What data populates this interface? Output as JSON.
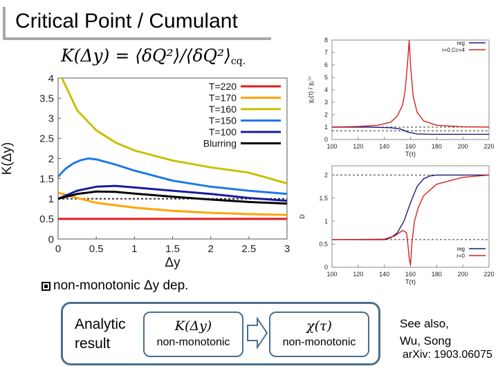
{
  "title": "Critical Point / Cumulant",
  "formula": {
    "lhs": "K(Δy)",
    "rhs_num": "⟨δQ²⟩",
    "rhs_den": "⟨δQ²⟩",
    "sub": "cq."
  },
  "bullet": "non-monotonic Δy dep.",
  "analytic": {
    "line1": "Analytic",
    "line2": "result"
  },
  "box1": {
    "formula": "K(Δy)",
    "label": "non-monotonic"
  },
  "box2": {
    "formula": "χ(τ)",
    "label": "non-monotonic"
  },
  "see_also": {
    "line1": "See also,",
    "line2": "Wu, Song",
    "arxiv": "arXiv: 1903.06075"
  },
  "colors": {
    "T220": "#e41a1c",
    "T170": "#ffa500",
    "T160": "#c8c000",
    "T150": "#1e78e6",
    "T100": "#1a1a9a",
    "Blurring": "#000000",
    "reg": "#1a1a7a",
    "red": "#d42020",
    "accent": "#4a6f8c"
  },
  "chart_data": [
    {
      "type": "line",
      "xlabel": "Δy",
      "ylabel": "K(Δy)",
      "xlim": [
        0,
        3
      ],
      "ylim": [
        0,
        4
      ],
      "xticks": [
        "0",
        "0.5",
        "1",
        "1.5",
        "2",
        "2.5",
        "3"
      ],
      "yticks": [
        "0",
        "0.5",
        "1",
        "1.5",
        "2",
        "2.5",
        "3",
        "3.5",
        "4"
      ],
      "reference_line": 1,
      "legend": "top-right",
      "series": [
        {
          "name": "T=220",
          "x": [
            0,
            3
          ],
          "y": [
            0.5,
            0.5
          ]
        },
        {
          "name": "T=170",
          "x": [
            0,
            0.25,
            0.5,
            1,
            1.5,
            2,
            2.5,
            3
          ],
          "y": [
            1.15,
            1.02,
            0.9,
            0.78,
            0.7,
            0.65,
            0.62,
            0.6
          ]
        },
        {
          "name": "T=160",
          "x": [
            0,
            0.25,
            0.5,
            0.75,
            1,
            1.5,
            2,
            2.5,
            3
          ],
          "y": [
            4.2,
            3.2,
            2.7,
            2.4,
            2.2,
            1.95,
            1.78,
            1.65,
            1.38
          ]
        },
        {
          "name": "T=150",
          "x": [
            0,
            0.1,
            0.2,
            0.3,
            0.4,
            0.5,
            0.75,
            1,
            1.5,
            2,
            2.5,
            3
          ],
          "y": [
            1.55,
            1.75,
            1.88,
            1.96,
            2.0,
            1.98,
            1.85,
            1.7,
            1.45,
            1.3,
            1.2,
            1.12
          ]
        },
        {
          "name": "T=100",
          "x": [
            0,
            0.25,
            0.5,
            0.75,
            1,
            1.5,
            2,
            2.5,
            3
          ],
          "y": [
            1.0,
            1.2,
            1.3,
            1.32,
            1.28,
            1.2,
            1.12,
            1.02,
            0.95
          ]
        },
        {
          "name": "Blurring",
          "x": [
            0,
            0.25,
            0.5,
            0.75,
            1,
            1.5,
            2,
            2.5,
            3
          ],
          "y": [
            1.0,
            1.12,
            1.18,
            1.17,
            1.13,
            1.05,
            0.98,
            0.92,
            0.88
          ]
        }
      ]
    },
    {
      "type": "line",
      "xlabel": "T(τ)",
      "ylabel": "χ₁(τ) / χ₁⁽ⁱ⁾",
      "xlim": [
        100,
        220
      ],
      "ylim": [
        0,
        8
      ],
      "xticks": [
        "100",
        "120",
        "140",
        "160",
        "180",
        "200",
        "220"
      ],
      "yticks": [
        "0",
        "1",
        "2",
        "3",
        "4",
        "5",
        "6",
        "7",
        "8"
      ],
      "reference_lines": [
        1,
        0.7
      ],
      "legend": "top-right",
      "series": [
        {
          "name": "reg",
          "x": [
            100,
            130,
            145,
            152,
            158,
            165,
            175,
            185,
            200,
            220
          ],
          "y": [
            1.0,
            1.0,
            0.95,
            0.85,
            0.6,
            0.45,
            0.42,
            0.42,
            0.42,
            0.42
          ]
        },
        {
          "name": "r=0,Cc=4",
          "x": [
            100,
            120,
            135,
            145,
            150,
            154,
            156,
            158,
            159,
            160,
            162,
            165,
            170,
            180,
            200,
            220
          ],
          "y": [
            1.0,
            1.05,
            1.15,
            1.4,
            1.9,
            2.8,
            4.0,
            6.5,
            8.0,
            6.0,
            3.5,
            2.2,
            1.5,
            1.15,
            1.02,
            1.0
          ]
        }
      ]
    },
    {
      "type": "line",
      "xlabel": "T(τ)",
      "ylabel": "D",
      "xlim": [
        100,
        220
      ],
      "ylim": [
        0,
        2.2
      ],
      "xticks": [
        "100",
        "120",
        "140",
        "160",
        "180",
        "200",
        "220"
      ],
      "yticks": [
        "0",
        "0.5",
        "1",
        "1.5",
        "2"
      ],
      "reference_lines": [
        2,
        0.6
      ],
      "legend": "bottom-right",
      "series": [
        {
          "name": "reg",
          "x": [
            100,
            140,
            145,
            150,
            155,
            160,
            165,
            170,
            175,
            180,
            190,
            200,
            220
          ],
          "y": [
            0.6,
            0.6,
            0.64,
            0.75,
            1.0,
            1.4,
            1.75,
            1.92,
            1.98,
            2.0,
            2.0,
            2.0,
            2.0
          ]
        },
        {
          "name": "r=0",
          "x": [
            100,
            140,
            148,
            154,
            157,
            158,
            159,
            160,
            161,
            163,
            166,
            170,
            180,
            200,
            220
          ],
          "y": [
            0.6,
            0.61,
            0.68,
            0.8,
            0.75,
            0.5,
            0.2,
            0.05,
            0.5,
            1.0,
            1.3,
            1.55,
            1.8,
            1.95,
            2.0
          ]
        }
      ]
    }
  ]
}
